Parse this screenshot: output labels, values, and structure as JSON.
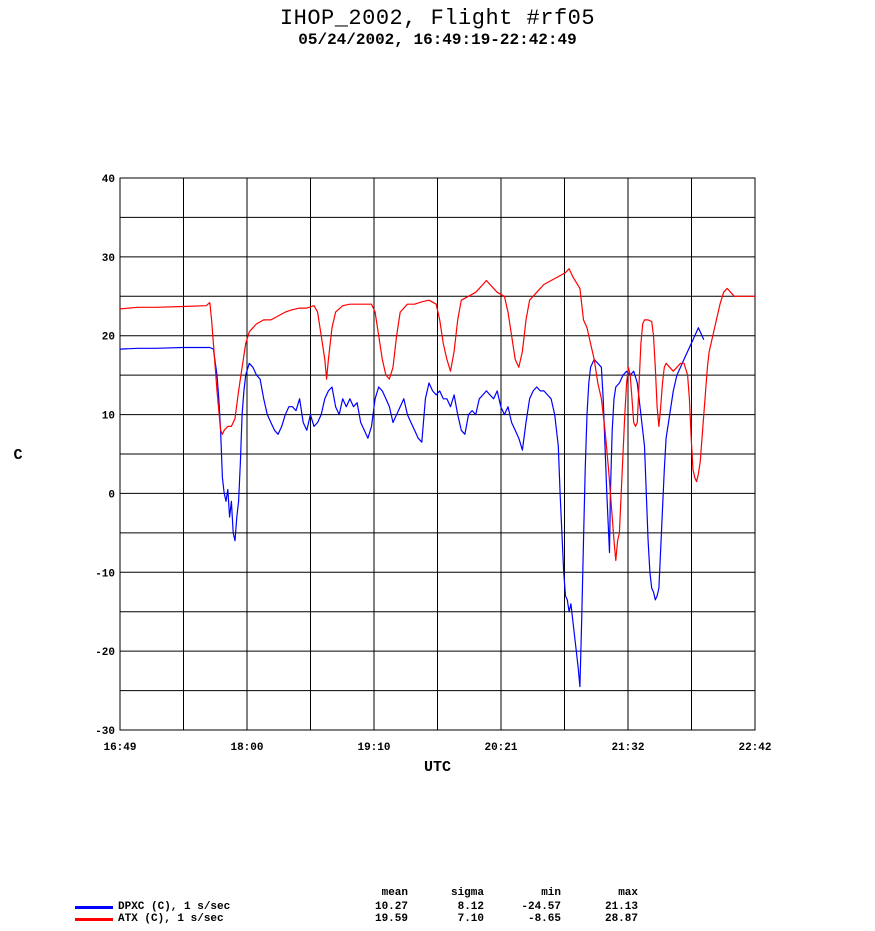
{
  "title": "IHOP_2002, Flight #rf05",
  "subtitle": "05/24/2002, 16:49:19-22:42:49",
  "chart_data": {
    "type": "line",
    "title": "IHOP_2002, Flight #rf05",
    "subtitle": "05/24/2002, 16:49:19-22:42:49",
    "xlabel": "UTC",
    "ylabel": "C",
    "xlim": [
      0,
      353.5
    ],
    "ylim": [
      -30,
      40
    ],
    "xticks": [
      "16:49",
      "18:00",
      "19:10",
      "20:21",
      "21:32",
      "22:42"
    ],
    "yticks": [
      40,
      30,
      20,
      10,
      0,
      -10,
      -20,
      -30
    ],
    "grid": true,
    "legend_position": "bottom-left",
    "x_unit": "minutes from 16:49:19",
    "series": [
      {
        "name": "DPXC (C), 1 s/sec",
        "color": "#0000ff",
        "points": [
          [
            0,
            18.3
          ],
          [
            10,
            18.4
          ],
          [
            20,
            18.4
          ],
          [
            35,
            18.5
          ],
          [
            50,
            18.5
          ],
          [
            52,
            18.3
          ],
          [
            54,
            15
          ],
          [
            55,
            12
          ],
          [
            56,
            8
          ],
          [
            57,
            2
          ],
          [
            58,
            0
          ],
          [
            59,
            -1
          ],
          [
            60,
            0.5
          ],
          [
            61,
            -3
          ],
          [
            62,
            -1
          ],
          [
            63,
            -5
          ],
          [
            64,
            -6
          ],
          [
            65,
            -3
          ],
          [
            66,
            -1
          ],
          [
            67,
            4
          ],
          [
            68,
            10
          ],
          [
            69,
            13
          ],
          [
            70,
            15
          ],
          [
            72,
            16.5
          ],
          [
            74,
            16
          ],
          [
            76,
            15
          ],
          [
            78,
            14.5
          ],
          [
            80,
            12
          ],
          [
            82,
            10
          ],
          [
            84,
            9
          ],
          [
            86,
            8
          ],
          [
            88,
            7.5
          ],
          [
            90,
            8.5
          ],
          [
            92,
            10
          ],
          [
            94,
            11
          ],
          [
            96,
            11
          ],
          [
            98,
            10.5
          ],
          [
            100,
            12
          ],
          [
            102,
            9
          ],
          [
            104,
            8
          ],
          [
            106,
            10
          ],
          [
            108,
            8.5
          ],
          [
            110,
            9
          ],
          [
            112,
            10
          ],
          [
            114,
            12
          ],
          [
            116,
            13
          ],
          [
            118,
            13.5
          ],
          [
            120,
            11
          ],
          [
            122,
            10
          ],
          [
            124,
            12
          ],
          [
            126,
            11
          ],
          [
            128,
            12
          ],
          [
            130,
            11
          ],
          [
            132,
            11.5
          ],
          [
            134,
            9
          ],
          [
            136,
            8
          ],
          [
            138,
            7
          ],
          [
            140,
            8.5
          ],
          [
            142,
            12
          ],
          [
            144,
            13.5
          ],
          [
            146,
            13
          ],
          [
            148,
            12
          ],
          [
            150,
            11
          ],
          [
            152,
            9
          ],
          [
            154,
            10
          ],
          [
            156,
            11
          ],
          [
            158,
            12
          ],
          [
            160,
            10
          ],
          [
            162,
            9
          ],
          [
            164,
            8
          ],
          [
            166,
            7
          ],
          [
            168,
            6.5
          ],
          [
            170,
            12
          ],
          [
            172,
            14
          ],
          [
            174,
            13
          ],
          [
            176,
            12.5
          ],
          [
            178,
            13
          ],
          [
            180,
            12
          ],
          [
            182,
            12
          ],
          [
            184,
            11
          ],
          [
            186,
            12.5
          ],
          [
            188,
            10
          ],
          [
            190,
            8
          ],
          [
            192,
            7.5
          ],
          [
            194,
            10
          ],
          [
            196,
            10.5
          ],
          [
            198,
            10
          ],
          [
            200,
            12
          ],
          [
            202,
            12.5
          ],
          [
            204,
            13
          ],
          [
            206,
            12.5
          ],
          [
            208,
            12
          ],
          [
            210,
            13
          ],
          [
            212,
            11
          ],
          [
            214,
            10
          ],
          [
            216,
            11
          ],
          [
            218,
            9
          ],
          [
            220,
            8
          ],
          [
            222,
            7
          ],
          [
            224,
            5.5
          ],
          [
            226,
            9
          ],
          [
            228,
            12
          ],
          [
            230,
            13
          ],
          [
            232,
            13.5
          ],
          [
            234,
            13
          ],
          [
            236,
            13
          ],
          [
            238,
            12.5
          ],
          [
            240,
            12
          ],
          [
            242,
            10
          ],
          [
            244,
            6
          ],
          [
            245,
            0
          ],
          [
            246,
            -5
          ],
          [
            247,
            -10
          ],
          [
            248,
            -13
          ],
          [
            249,
            -13.5
          ],
          [
            250,
            -15
          ],
          [
            251,
            -14
          ],
          [
            252,
            -16
          ],
          [
            253,
            -18
          ],
          [
            254,
            -20
          ],
          [
            255,
            -22
          ],
          [
            256,
            -24.5
          ],
          [
            257,
            -16
          ],
          [
            258,
            -6
          ],
          [
            259,
            3
          ],
          [
            260,
            10
          ],
          [
            261,
            14
          ],
          [
            262,
            16
          ],
          [
            264,
            17
          ],
          [
            266,
            16.5
          ],
          [
            268,
            16
          ],
          [
            269,
            12
          ],
          [
            270,
            6
          ],
          [
            271,
            0
          ],
          [
            272,
            -5
          ],
          [
            272.5,
            -7.5
          ],
          [
            273,
            0
          ],
          [
            274,
            8
          ],
          [
            275,
            12
          ],
          [
            276,
            13.5
          ],
          [
            278,
            14
          ],
          [
            280,
            15
          ],
          [
            282,
            15.5
          ],
          [
            284,
            15
          ],
          [
            286,
            15.5
          ],
          [
            288,
            14
          ],
          [
            290,
            10
          ],
          [
            292,
            6
          ],
          [
            293,
            0
          ],
          [
            294,
            -6
          ],
          [
            295,
            -10
          ],
          [
            296,
            -12
          ],
          [
            297,
            -12.5
          ],
          [
            298,
            -13.5
          ],
          [
            299,
            -13
          ],
          [
            300,
            -12
          ],
          [
            301,
            -7
          ],
          [
            302,
            -2
          ],
          [
            303,
            3
          ],
          [
            304,
            7
          ],
          [
            306,
            10
          ],
          [
            308,
            13
          ],
          [
            310,
            15
          ],
          [
            312,
            16
          ],
          [
            314,
            17
          ],
          [
            316,
            18
          ],
          [
            318,
            19
          ],
          [
            320,
            20
          ],
          [
            322,
            21
          ],
          [
            323,
            20.5
          ],
          [
            325,
            19.5
          ]
        ]
      },
      {
        "name": "ATX (C), 1 s/sec",
        "color": "#ff0000",
        "points": [
          [
            0,
            23.4
          ],
          [
            10,
            23.6
          ],
          [
            20,
            23.6
          ],
          [
            35,
            23.7
          ],
          [
            48,
            23.8
          ],
          [
            50,
            24.2
          ],
          [
            51,
            22
          ],
          [
            52,
            19
          ],
          [
            53,
            16
          ],
          [
            54,
            13
          ],
          [
            55,
            10.5
          ],
          [
            56,
            8
          ],
          [
            57,
            7.5
          ],
          [
            58,
            8
          ],
          [
            60,
            8.5
          ],
          [
            62,
            8.5
          ],
          [
            64,
            9.5
          ],
          [
            66,
            13
          ],
          [
            68,
            16
          ],
          [
            70,
            19
          ],
          [
            72,
            20.5
          ],
          [
            74,
            21
          ],
          [
            76,
            21.5
          ],
          [
            80,
            22
          ],
          [
            84,
            22
          ],
          [
            88,
            22.5
          ],
          [
            92,
            23
          ],
          [
            96,
            23.3
          ],
          [
            100,
            23.5
          ],
          [
            104,
            23.5
          ],
          [
            108,
            23.8
          ],
          [
            110,
            23
          ],
          [
            112,
            20
          ],
          [
            114,
            17
          ],
          [
            115,
            14.5
          ],
          [
            116,
            17
          ],
          [
            118,
            21
          ],
          [
            120,
            23
          ],
          [
            124,
            23.8
          ],
          [
            128,
            24
          ],
          [
            132,
            24
          ],
          [
            136,
            24
          ],
          [
            140,
            24
          ],
          [
            142,
            23
          ],
          [
            144,
            20
          ],
          [
            146,
            17
          ],
          [
            148,
            15
          ],
          [
            150,
            14.5
          ],
          [
            152,
            16
          ],
          [
            154,
            20
          ],
          [
            156,
            23
          ],
          [
            160,
            24
          ],
          [
            164,
            24
          ],
          [
            168,
            24.3
          ],
          [
            172,
            24.5
          ],
          [
            176,
            24
          ],
          [
            178,
            22
          ],
          [
            180,
            19
          ],
          [
            182,
            17
          ],
          [
            184,
            15.5
          ],
          [
            186,
            18
          ],
          [
            188,
            22
          ],
          [
            190,
            24.5
          ],
          [
            194,
            25
          ],
          [
            198,
            25.5
          ],
          [
            202,
            26.5
          ],
          [
            204,
            27
          ],
          [
            206,
            26.5
          ],
          [
            210,
            25.5
          ],
          [
            214,
            25
          ],
          [
            216,
            23
          ],
          [
            218,
            20
          ],
          [
            220,
            17
          ],
          [
            222,
            16
          ],
          [
            224,
            18
          ],
          [
            226,
            22
          ],
          [
            228,
            24.5
          ],
          [
            232,
            25.5
          ],
          [
            236,
            26.5
          ],
          [
            240,
            27
          ],
          [
            244,
            27.5
          ],
          [
            248,
            28
          ],
          [
            250,
            28.5
          ],
          [
            252,
            27.5
          ],
          [
            256,
            26
          ],
          [
            258,
            22
          ],
          [
            260,
            21
          ],
          [
            262,
            19
          ],
          [
            264,
            17
          ],
          [
            266,
            14
          ],
          [
            268,
            12
          ],
          [
            270,
            8
          ],
          [
            272,
            3
          ],
          [
            273,
            0
          ],
          [
            274,
            -3
          ],
          [
            275,
            -6
          ],
          [
            276,
            -8.5
          ],
          [
            277,
            -6
          ],
          [
            278,
            -5
          ],
          [
            279,
            0
          ],
          [
            280,
            5
          ],
          [
            281,
            10
          ],
          [
            282,
            14
          ],
          [
            283,
            16
          ],
          [
            284,
            15
          ],
          [
            285,
            12
          ],
          [
            286,
            9
          ],
          [
            287,
            8.5
          ],
          [
            288,
            9
          ],
          [
            289,
            14
          ],
          [
            290,
            19
          ],
          [
            291,
            21.5
          ],
          [
            292,
            22
          ],
          [
            294,
            22
          ],
          [
            296,
            21.8
          ],
          [
            297,
            20
          ],
          [
            298,
            16
          ],
          [
            299,
            11
          ],
          [
            300,
            8.5
          ],
          [
            301,
            11
          ],
          [
            302,
            14
          ],
          [
            303,
            16
          ],
          [
            304,
            16.5
          ],
          [
            306,
            16
          ],
          [
            308,
            15.5
          ],
          [
            310,
            16
          ],
          [
            312,
            16.5
          ],
          [
            314,
            16.5
          ],
          [
            316,
            15
          ],
          [
            317,
            12
          ],
          [
            318,
            7
          ],
          [
            319,
            3
          ],
          [
            320,
            2
          ],
          [
            321,
            1.5
          ],
          [
            322,
            2.5
          ],
          [
            323,
            4
          ],
          [
            324,
            7
          ],
          [
            325,
            10
          ],
          [
            326,
            13
          ],
          [
            327,
            16
          ],
          [
            328,
            18
          ],
          [
            330,
            20
          ],
          [
            332,
            22
          ],
          [
            334,
            24
          ],
          [
            336,
            25.5
          ],
          [
            338,
            26
          ],
          [
            340,
            25.5
          ],
          [
            342,
            25
          ],
          [
            344,
            25
          ],
          [
            346,
            25
          ],
          [
            348,
            25
          ],
          [
            350,
            25
          ],
          [
            353.5,
            25
          ]
        ]
      }
    ],
    "stats": {
      "headers": [
        "mean",
        "sigma",
        "min",
        "max"
      ],
      "rows": [
        {
          "label": "DPXC (C), 1 s/sec",
          "values": [
            "10.27",
            "8.12",
            "-24.57",
            "21.13"
          ]
        },
        {
          "label": "ATX (C), 1 s/sec",
          "values": [
            "19.59",
            "7.10",
            "-8.65",
            "28.87"
          ]
        }
      ]
    }
  }
}
